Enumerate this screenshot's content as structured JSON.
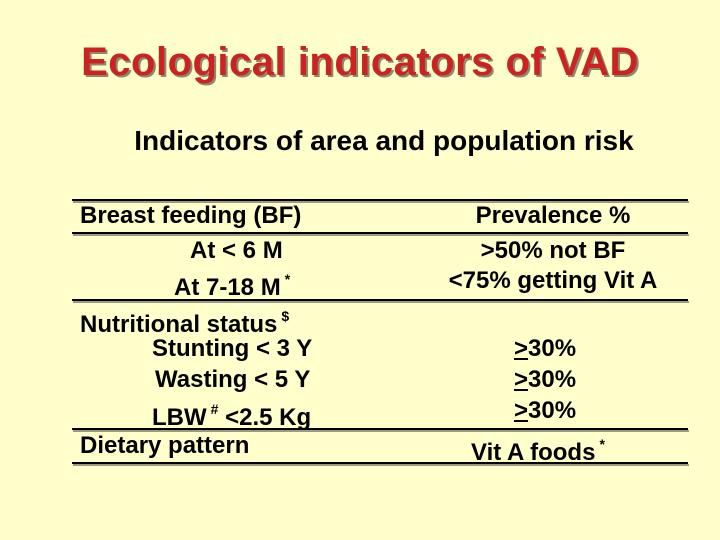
{
  "title": "Ecological indicators of VAD",
  "subtitle": "Indicators of area and population risk",
  "table": {
    "header": {
      "left": "Breast feeding (BF)",
      "right": "Prevalence %"
    },
    "bf_rows": [
      {
        "left": "At < 6 M",
        "left_sup": "",
        "right": ">50% not BF"
      },
      {
        "left": "At 7-18 M",
        "left_sup": "*",
        "right": "<75% getting Vit A"
      }
    ],
    "nutrition": {
      "heading": "Nutritional status",
      "heading_sup": "$",
      "rows": [
        {
          "left": "Stunting < 3 Y",
          "right_sign": ">",
          "right": "30%"
        },
        {
          "left": "Wasting < 5 Y",
          "right_sign": ">",
          "right": "30%"
        },
        {
          "left_a": "LBW",
          "left_sup": "#",
          "left_b": "<2.5 Kg",
          "right_sign": ">",
          "right": "30%"
        }
      ]
    },
    "diet": {
      "left": "Dietary pattern",
      "right": "Vit A foods",
      "right_sup": "*"
    }
  }
}
